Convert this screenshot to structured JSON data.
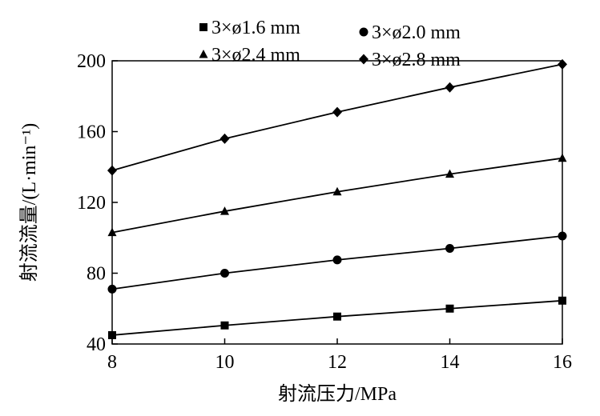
{
  "chart_data": {
    "type": "line",
    "x": [
      8,
      10,
      12,
      14,
      16
    ],
    "xlabel": "射流压力/MPa",
    "ylabel": "射流流量/(L·min⁻¹)",
    "xlim": [
      8,
      16
    ],
    "ylim": [
      40,
      200
    ],
    "xticks": [
      8,
      10,
      12,
      14,
      16
    ],
    "yticks": [
      40,
      80,
      120,
      160,
      200
    ],
    "grid": false,
    "legend_position": "top",
    "series": [
      {
        "name": "3×ø1.6 mm",
        "marker": "square",
        "values": [
          45,
          50.5,
          55.5,
          60,
          64.5
        ]
      },
      {
        "name": "3×ø2.0 mm",
        "marker": "circle",
        "values": [
          71,
          80,
          87.5,
          94,
          101
        ]
      },
      {
        "name": "3×ø2.4 mm",
        "marker": "triangle",
        "values": [
          103,
          115,
          126,
          136,
          145
        ]
      },
      {
        "name": "3×ø2.8 mm",
        "marker": "diamond",
        "values": [
          138,
          156,
          171,
          185,
          198
        ]
      }
    ]
  }
}
